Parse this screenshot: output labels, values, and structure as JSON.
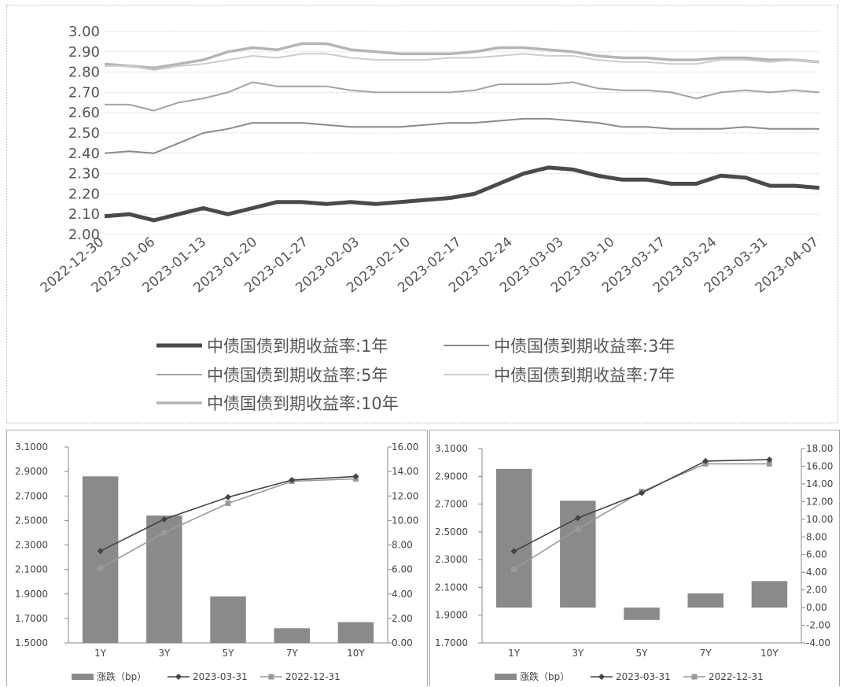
{
  "chart_data": [
    {
      "type": "line",
      "title": "",
      "y_ticks": [
        "2.00",
        "2.10",
        "2.20",
        "2.30",
        "2.40",
        "2.50",
        "2.60",
        "2.70",
        "2.80",
        "2.90",
        "3.00"
      ],
      "ylim": [
        2.0,
        3.0
      ],
      "x_ticks": [
        "2022-12-30",
        "2023-01-06",
        "2023-01-13",
        "2023-01-20",
        "2023-01-27",
        "2023-02-03",
        "2023-02-10",
        "2023-02-17",
        "2023-02-24",
        "2023-03-03",
        "2023-03-10",
        "2023-03-17",
        "2023-03-24",
        "2023-03-31",
        "2023-04-07"
      ],
      "grid": true,
      "legend_position": "bottom",
      "series": [
        {
          "name": "中债国债到期收益率:1年",
          "color": "#4a4a4a",
          "values": [
            2.09,
            2.1,
            2.07,
            2.1,
            2.13,
            2.1,
            2.13,
            2.16,
            2.16,
            2.15,
            2.16,
            2.15,
            2.16,
            2.17,
            2.18,
            2.2,
            2.25,
            2.3,
            2.33,
            2.32,
            2.29,
            2.27,
            2.27,
            2.25,
            2.25,
            2.29,
            2.28,
            2.24,
            2.24,
            2.23
          ]
        },
        {
          "name": "中债国债到期收益率:3年",
          "color": "#8a8a8a",
          "values": [
            2.4,
            2.41,
            2.4,
            2.45,
            2.5,
            2.52,
            2.55,
            2.55,
            2.55,
            2.54,
            2.53,
            2.53,
            2.53,
            2.54,
            2.55,
            2.55,
            2.56,
            2.57,
            2.57,
            2.56,
            2.55,
            2.53,
            2.53,
            2.52,
            2.52,
            2.52,
            2.53,
            2.52,
            2.52,
            2.52
          ]
        },
        {
          "name": "中债国债到期收益率:5年",
          "color": "#a3a3a3",
          "values": [
            2.64,
            2.64,
            2.61,
            2.65,
            2.67,
            2.7,
            2.75,
            2.73,
            2.73,
            2.73,
            2.71,
            2.7,
            2.7,
            2.7,
            2.7,
            2.71,
            2.74,
            2.74,
            2.74,
            2.75,
            2.72,
            2.71,
            2.71,
            2.7,
            2.67,
            2.7,
            2.71,
            2.7,
            2.71,
            2.7
          ]
        },
        {
          "name": "中债国债到期收益率:7年",
          "color": "#cdcdcd",
          "values": [
            2.83,
            2.83,
            2.81,
            2.83,
            2.84,
            2.86,
            2.88,
            2.87,
            2.89,
            2.89,
            2.87,
            2.86,
            2.86,
            2.86,
            2.87,
            2.87,
            2.88,
            2.89,
            2.88,
            2.88,
            2.86,
            2.85,
            2.85,
            2.84,
            2.84,
            2.86,
            2.86,
            2.85,
            2.86,
            2.85
          ]
        },
        {
          "name": "中债国债到期收益率:10年",
          "color": "#b5b5b5",
          "values": [
            2.84,
            2.83,
            2.82,
            2.84,
            2.86,
            2.9,
            2.92,
            2.91,
            2.94,
            2.94,
            2.91,
            2.9,
            2.89,
            2.89,
            2.89,
            2.9,
            2.92,
            2.92,
            2.91,
            2.9,
            2.88,
            2.87,
            2.87,
            2.86,
            2.86,
            2.87,
            2.87,
            2.86,
            2.86,
            2.85
          ]
        }
      ]
    },
    {
      "type": "bar",
      "title": "",
      "categories": [
        "1Y",
        "3Y",
        "5Y",
        "7Y",
        "10Y"
      ],
      "left_axis_ticks": [
        "1.5000",
        "1.7000",
        "1.9000",
        "2.1000",
        "2.3000",
        "2.5000",
        "2.7000",
        "2.9000",
        "3.1000"
      ],
      "right_axis_ticks": [
        "0.00",
        "2.00",
        "4.00",
        "6.00",
        "8.00",
        "10.00",
        "12.00",
        "14.00",
        "16.00"
      ],
      "ylim_left": [
        1.5,
        3.1
      ],
      "ylim_right": [
        0,
        16
      ],
      "legend_position": "bottom",
      "series": [
        {
          "name": "涨跌（bp）",
          "axis": "right",
          "kind": "bar",
          "color": "#8a8a8a",
          "values": [
            13.6,
            10.4,
            3.8,
            1.2,
            1.7
          ]
        },
        {
          "name": "2023-03-31",
          "axis": "left",
          "kind": "line",
          "marker": "diamond",
          "color": "#444444",
          "values": [
            2.25,
            2.51,
            2.69,
            2.83,
            2.86
          ]
        },
        {
          "name": "2022-12-31",
          "axis": "left",
          "kind": "line",
          "marker": "square",
          "color": "#9a9a9a",
          "values": [
            2.11,
            2.4,
            2.64,
            2.82,
            2.84
          ]
        }
      ]
    },
    {
      "type": "bar",
      "title": "",
      "categories": [
        "1Y",
        "3Y",
        "5Y",
        "7Y",
        "10Y"
      ],
      "left_axis_ticks": [
        "1.7000",
        "1.9000",
        "2.1000",
        "2.3000",
        "2.5000",
        "2.7000",
        "2.9000",
        "3.1000"
      ],
      "right_axis_ticks": [
        "-4.00",
        "-2.00",
        "0.00",
        "2.00",
        "4.00",
        "6.00",
        "8.00",
        "10.00",
        "12.00",
        "14.00",
        "16.00",
        "18.00"
      ],
      "ylim_left": [
        1.7,
        3.1
      ],
      "ylim_right": [
        -4,
        18
      ],
      "legend_position": "bottom",
      "series": [
        {
          "name": "涨跌（bp）",
          "axis": "right",
          "kind": "bar",
          "color": "#8a8a8a",
          "values": [
            15.7,
            12.1,
            -1.4,
            1.6,
            3.0
          ]
        },
        {
          "name": "2023-03-31",
          "axis": "left",
          "kind": "line",
          "marker": "diamond",
          "color": "#444444",
          "values": [
            2.36,
            2.6,
            2.78,
            3.01,
            3.02
          ]
        },
        {
          "name": "2022-12-31",
          "axis": "left",
          "kind": "line",
          "marker": "square",
          "color": "#9a9a9a",
          "values": [
            2.23,
            2.52,
            2.79,
            2.99,
            2.99
          ]
        }
      ]
    }
  ]
}
